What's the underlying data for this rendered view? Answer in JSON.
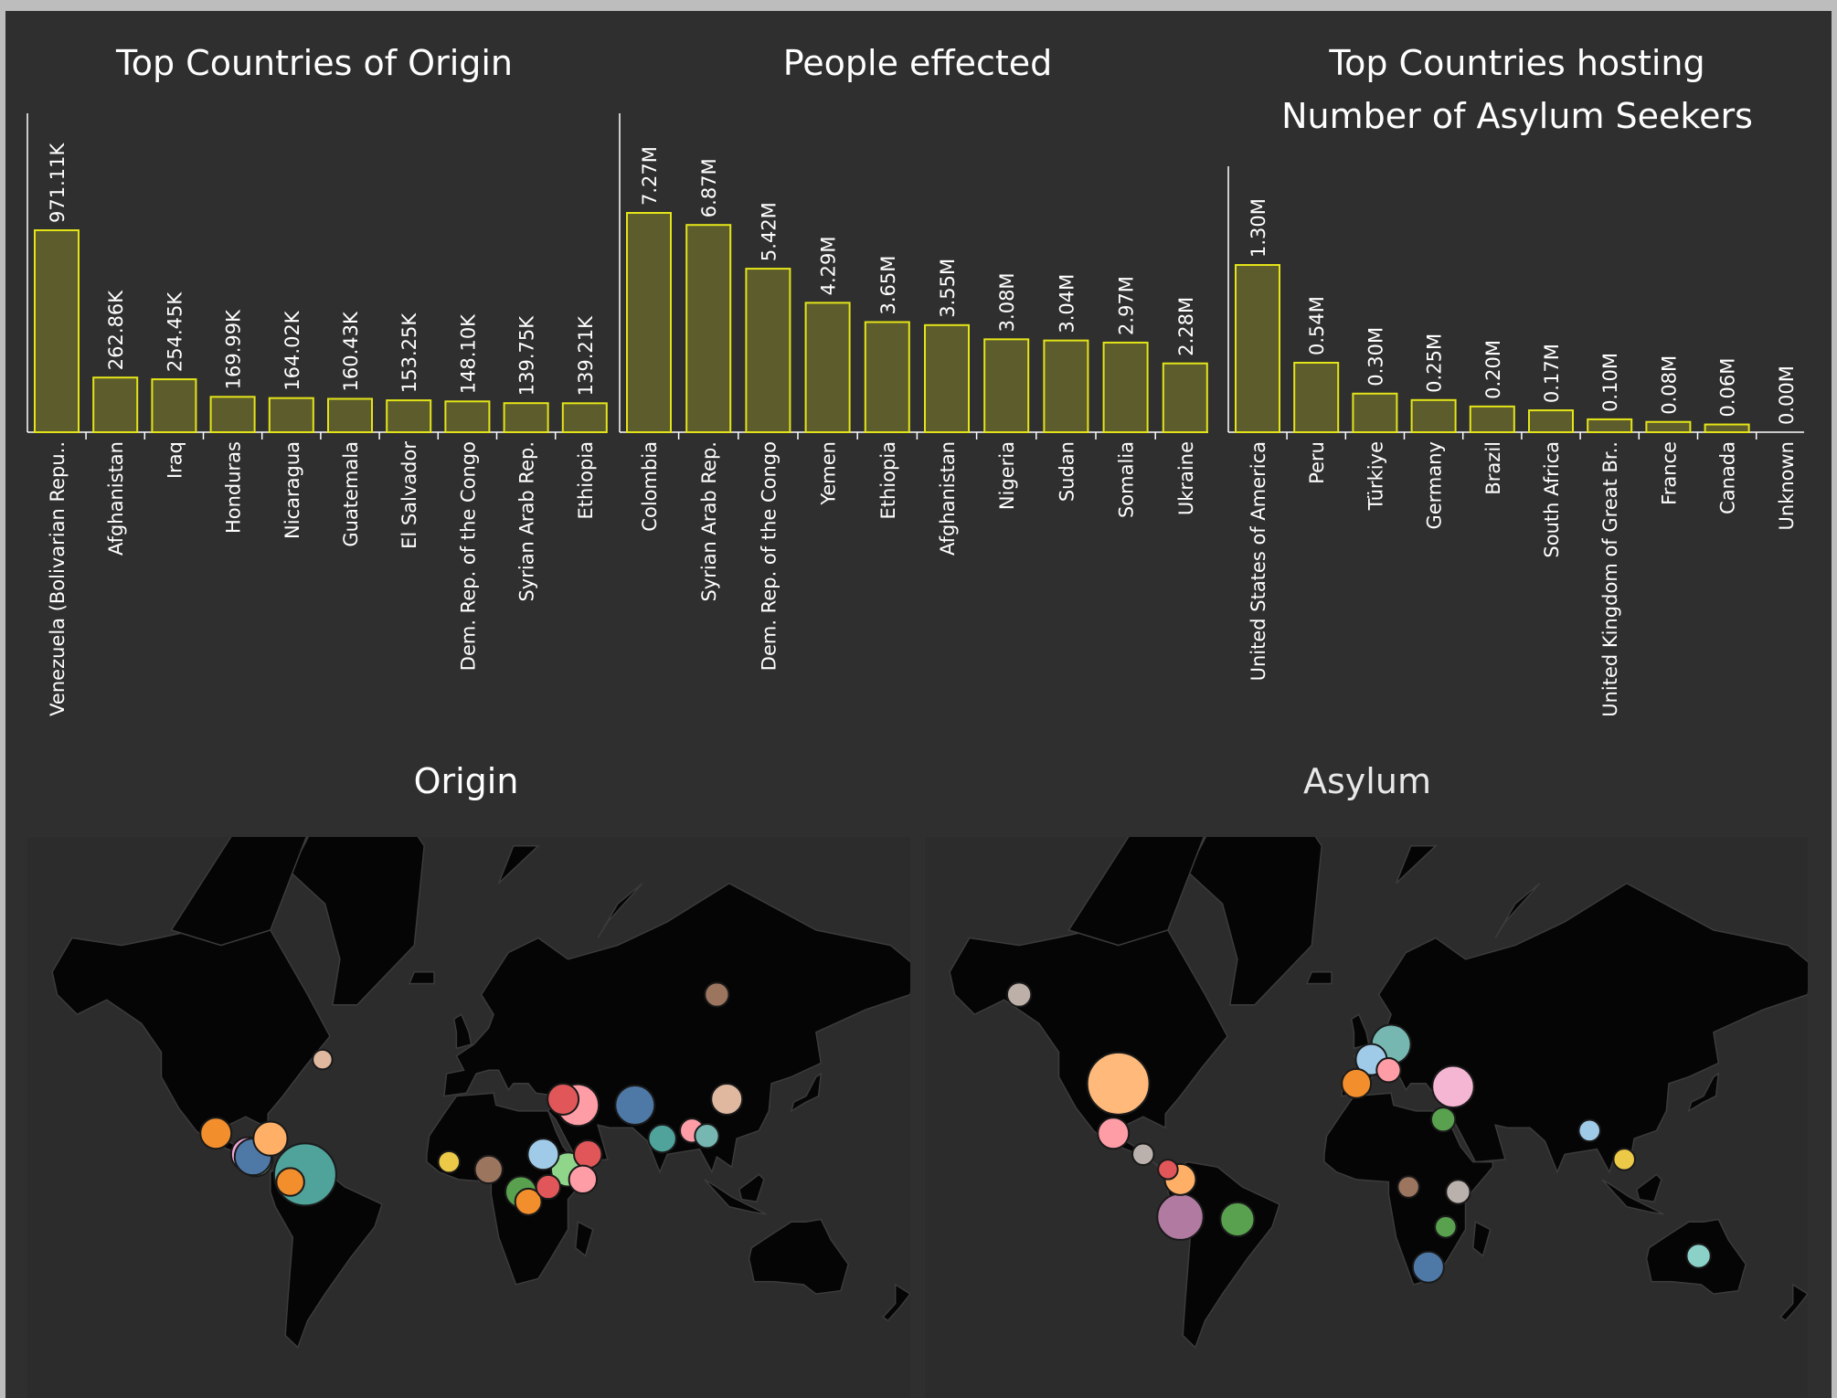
{
  "charts": [
    {
      "title_lines": [
        "Top Countries of Origin"
      ],
      "chart_data": {
        "type": "bar",
        "title": "Top Countries of Origin",
        "categories": [
          "Venezuela (Bolivarian Repu..",
          "Afghanistan",
          "Iraq",
          "Honduras",
          "Nicaragua",
          "Guatemala",
          "El Salvador",
          "Dem. Rep. of the Congo",
          "Syrian Arab Rep.",
          "Ethiopia"
        ],
        "values": [
          971110,
          262860,
          254450,
          169990,
          164020,
          160430,
          153250,
          148100,
          139750,
          139210
        ],
        "labels": [
          "971.11K",
          "262.86K",
          "254.45K",
          "169.99K",
          "164.02K",
          "160.43K",
          "153.25K",
          "148.10K",
          "139.75K",
          "139.21K"
        ],
        "ylim": [
          0,
          971110
        ]
      }
    },
    {
      "title_lines": [
        "People effected"
      ],
      "chart_data": {
        "type": "bar",
        "title": "People effected",
        "categories": [
          "Colombia",
          "Syrian Arab Rep.",
          "Dem. Rep. of the Congo",
          "Yemen",
          "Ethiopia",
          "Afghanistan",
          "Nigeria",
          "Sudan",
          "Somalia",
          "Ukraine"
        ],
        "values": [
          7270000,
          6870000,
          5420000,
          4290000,
          3650000,
          3550000,
          3080000,
          3040000,
          2970000,
          2280000
        ],
        "labels": [
          "7.27M",
          "6.87M",
          "5.42M",
          "4.29M",
          "3.65M",
          "3.55M",
          "3.08M",
          "3.04M",
          "2.97M",
          "2.28M"
        ],
        "ylim": [
          0,
          7270000
        ]
      }
    },
    {
      "title_lines": [
        "Top Countries hosting",
        "Number of Asylum Seekers"
      ],
      "chart_data": {
        "type": "bar",
        "title": "Top Countries hosting Number of Asylum Seekers",
        "categories": [
          "United States of America",
          "Peru",
          "Türkiye",
          "Germany",
          "Brazil",
          "South Africa",
          "United Kingdom of Great Br..",
          "France",
          "Canada",
          "Unknown"
        ],
        "values": [
          1300000,
          540000,
          300000,
          250000,
          200000,
          170000,
          100000,
          80000,
          60000,
          0
        ],
        "labels": [
          "1.30M",
          "0.54M",
          "0.30M",
          "0.25M",
          "0.20M",
          "0.17M",
          "0.10M",
          "0.08M",
          "0.06M",
          "0.00M"
        ],
        "ylim": [
          0,
          1300000
        ]
      }
    }
  ],
  "maps": [
    {
      "title": "Origin",
      "bubbles": [
        {
          "lon": -66,
          "lat": 7,
          "size": 1,
          "color": "#4fa39a"
        },
        {
          "lon": -86,
          "lat": 13,
          "size": 0.3,
          "color": "#8fd1a8"
        },
        {
          "lon": -89,
          "lat": 15,
          "size": 0.3,
          "color": "#f2a6d8"
        },
        {
          "lon": -87,
          "lat": 14,
          "size": 0.35,
          "color": "#4e79a7"
        },
        {
          "lon": -80,
          "lat": 21,
          "size": 0.3,
          "color": "#ffb066"
        },
        {
          "lon": -102,
          "lat": 23,
          "size": 0.25,
          "color": "#f28e2b"
        },
        {
          "lon": -72,
          "lat": 4,
          "size": 0.2,
          "color": "#f28e2b"
        },
        {
          "lon": 67,
          "lat": 33,
          "size": 0.4,
          "color": "#4e79a7"
        },
        {
          "lon": 44,
          "lat": 33,
          "size": 0.45,
          "color": "#ff9da7"
        },
        {
          "lon": 38,
          "lat": 35,
          "size": 0.25,
          "color": "#e15759"
        },
        {
          "lon": 104,
          "lat": 35,
          "size": 0.25,
          "color": "#e0b8a0"
        },
        {
          "lon": 21,
          "lat": 0,
          "size": 0.25,
          "color": "#59a14f"
        },
        {
          "lon": 40,
          "lat": 9,
          "size": 0.3,
          "color": "#8fd68a"
        },
        {
          "lon": 30,
          "lat": 15,
          "size": 0.25,
          "color": "#a0cbe8"
        },
        {
          "lon": 48,
          "lat": 15,
          "size": 0.2,
          "color": "#e15759"
        },
        {
          "lon": 8,
          "lat": 9,
          "size": 0.2,
          "color": "#9c755f"
        },
        {
          "lon": 46,
          "lat": 5,
          "size": 0.2,
          "color": "#ff9da7"
        },
        {
          "lon": 78,
          "lat": 21,
          "size": 0.2,
          "color": "#4fa39a"
        },
        {
          "lon": 100,
          "lat": 62,
          "size": 0.15,
          "color": "#9c755f"
        },
        {
          "lon": -59,
          "lat": 47,
          "size": 0.1,
          "color": "#e0b8a0"
        },
        {
          "lon": 90,
          "lat": 24,
          "size": 0.15,
          "color": "#ff9da7"
        },
        {
          "lon": 96,
          "lat": 22,
          "size": 0.15,
          "color": "#76b7b2"
        },
        {
          "lon": -8,
          "lat": 12,
          "size": 0.12,
          "color": "#edc948"
        },
        {
          "lon": 24,
          "lat": -4,
          "size": 0.18,
          "color": "#f28e2b"
        },
        {
          "lon": 32,
          "lat": 2,
          "size": 0.15,
          "color": "#e15759"
        }
      ]
    },
    {
      "title": "Asylum",
      "bubbles": [
        {
          "lon": -100,
          "lat": 40,
          "size": 1,
          "color": "#ffb97a"
        },
        {
          "lon": -75,
          "lat": -10,
          "size": 0.55,
          "color": "#b07aa1"
        },
        {
          "lon": -52,
          "lat": -11,
          "size": 0.3,
          "color": "#59a14f"
        },
        {
          "lon": 35,
          "lat": 39,
          "size": 0.45,
          "color": "#f4b6d2"
        },
        {
          "lon": 10,
          "lat": 51,
          "size": 0.4,
          "color": "#76b7b2"
        },
        {
          "lon": 2,
          "lat": 47,
          "size": 0.25,
          "color": "#a0cbe8"
        },
        {
          "lon": 25,
          "lat": -29,
          "size": 0.25,
          "color": "#4e79a7"
        },
        {
          "lon": -75,
          "lat": 5,
          "size": 0.25,
          "color": "#ffb066"
        },
        {
          "lon": -102,
          "lat": 23,
          "size": 0.25,
          "color": "#ff9da7"
        },
        {
          "lon": -4,
          "lat": 40,
          "size": 0.22,
          "color": "#f28e2b"
        },
        {
          "lon": 134,
          "lat": -25,
          "size": 0.15,
          "color": "#8cd1c8"
        },
        {
          "lon": -140,
          "lat": 62,
          "size": 0.15,
          "color": "#bdb0a8"
        },
        {
          "lon": 9,
          "lat": 44,
          "size": 0.15,
          "color": "#ff9da7"
        },
        {
          "lon": 31,
          "lat": 28,
          "size": 0.15,
          "color": "#59a14f"
        },
        {
          "lon": 37,
          "lat": 0,
          "size": 0.15,
          "color": "#bab0ac"
        },
        {
          "lon": 32,
          "lat": -14,
          "size": 0.12,
          "color": "#59a14f"
        },
        {
          "lon": 90,
          "lat": 24,
          "size": 0.12,
          "color": "#a0cbe8"
        },
        {
          "lon": 104,
          "lat": 13,
          "size": 0.12,
          "color": "#edc948"
        },
        {
          "lon": 17,
          "lat": 2,
          "size": 0.12,
          "color": "#9c755f"
        },
        {
          "lon": -80,
          "lat": 9,
          "size": 0.1,
          "color": "#e15759"
        },
        {
          "lon": -90,
          "lat": 15,
          "size": 0.12,
          "color": "#bab0ac"
        }
      ]
    }
  ]
}
